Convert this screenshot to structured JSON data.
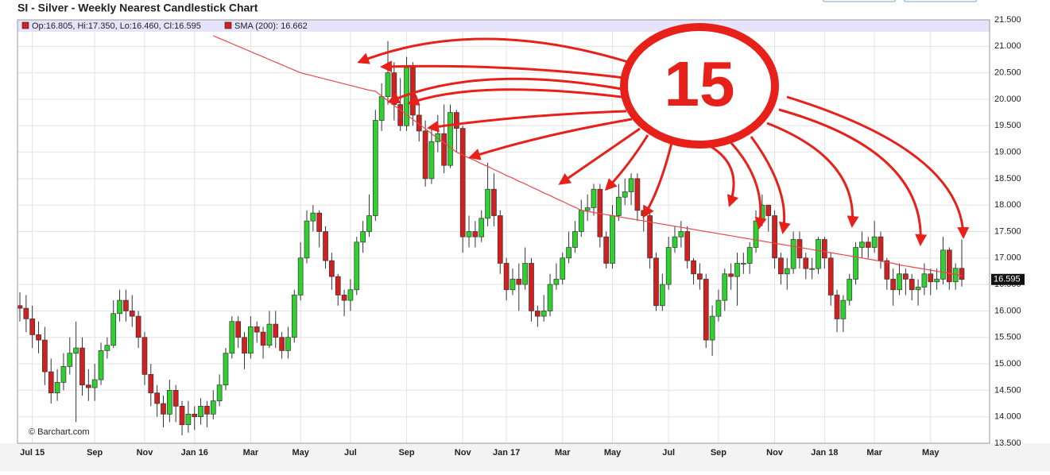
{
  "chart_data": {
    "type": "candlestick",
    "title": "SI - Silver - Weekly Nearest Candlestick Chart",
    "legend": [
      "Op:16.805, Hi:17.350, Lo:16.460, Cl:16.595",
      "SMA (200): 16.662"
    ],
    "watermark": "© Barchart.com",
    "annotation": "15",
    "up_color": "#2fd12f",
    "down_color": "#d0201f",
    "sma_color": "#e8484a",
    "grid": true,
    "categories": [
      null,
      null,
      "Jul 15",
      null,
      null,
      null,
      null,
      null,
      null,
      null,
      null,
      null,
      "Sep",
      null,
      null,
      null,
      null,
      null,
      null,
      null,
      "Nov",
      null,
      null,
      null,
      null,
      null,
      null,
      null,
      "Jan 16",
      null,
      null,
      null,
      null,
      null,
      null,
      null,
      null,
      "Mar",
      null,
      null,
      null,
      null,
      null,
      null,
      null,
      "May",
      null,
      null,
      null,
      null,
      null,
      null,
      null,
      "Jul",
      null,
      null,
      null,
      null,
      null,
      null,
      null,
      null,
      "Sep",
      null,
      null,
      null,
      null,
      null,
      null,
      null,
      null,
      "Nov",
      null,
      null,
      null,
      null,
      null,
      null,
      "Jan 17",
      null,
      null,
      null,
      null,
      null,
      null,
      null,
      null,
      "Mar",
      null,
      null,
      null,
      null,
      null,
      null,
      null,
      "May",
      null,
      null,
      null,
      null,
      null,
      null,
      null,
      null,
      "Jul",
      null,
      null,
      null,
      null,
      null,
      null,
      null,
      "Sep",
      null,
      null,
      null,
      null,
      null,
      null,
      null,
      null,
      "Nov",
      null,
      null,
      null,
      null,
      null,
      null,
      null,
      "Jan 18",
      null,
      null,
      null,
      null,
      null,
      null,
      null,
      "Mar",
      null,
      null,
      null,
      null,
      null,
      null,
      null,
      null,
      "May",
      null,
      null,
      null,
      null,
      null
    ],
    "open": [
      16.1,
      16.05,
      15.85,
      15.55,
      15.45,
      14.85,
      14.45,
      14.65,
      14.95,
      15.2,
      15.3,
      14.6,
      14.55,
      14.7,
      15.25,
      15.35,
      15.95,
      16.2,
      16.0,
      15.9,
      15.5,
      14.8,
      14.45,
      14.25,
      14.05,
      14.5,
      14.2,
      13.85,
      14.05,
      14.0,
      14.2,
      14.05,
      14.3,
      14.6,
      15.2,
      15.8,
      15.5,
      15.2,
      15.7,
      15.6,
      15.35,
      15.75,
      15.5,
      15.25,
      15.5,
      16.3,
      17.0,
      17.7,
      17.85,
      17.5,
      16.95,
      16.65,
      16.3,
      16.2,
      16.4,
      17.3,
      17.5,
      17.8,
      19.6,
      20.05,
      20.5,
      19.9,
      19.5,
      20.6,
      19.7,
      19.4,
      18.5,
      19.2,
      19.35,
      18.75,
      19.75,
      19.45,
      17.4,
      17.5,
      17.4,
      17.75,
      18.3,
      17.8,
      16.9,
      16.4,
      16.6,
      16.5,
      16.9,
      16.0,
      15.9,
      16.0,
      16.5,
      16.6,
      17.0,
      17.2,
      17.5,
      17.9,
      17.95,
      18.3,
      17.4,
      16.9,
      17.8,
      18.15,
      18.25,
      18.5,
      17.9,
      17.8,
      17.0,
      16.1,
      16.5,
      17.2,
      17.4,
      17.5,
      16.95,
      16.7,
      16.6,
      15.45,
      15.9,
      16.2,
      16.7,
      16.65,
      16.9,
      16.9,
      17.2,
      17.7,
      18.0,
      17.8,
      17.0,
      16.7,
      16.8,
      17.35,
      17.0,
      16.8,
      16.8,
      17.35,
      17.0,
      16.3,
      15.85,
      16.2,
      16.6,
      17.2,
      17.3,
      17.2,
      17.4,
      16.95,
      16.6,
      16.4,
      16.7,
      16.6,
      16.4,
      16.45,
      16.7,
      16.55,
      16.6,
      17.15,
      16.55,
      16.805
    ],
    "high": [
      16.35,
      16.3,
      16.1,
      15.8,
      15.7,
      15.1,
      14.9,
      15.2,
      15.5,
      15.8,
      15.5,
      14.9,
      15.0,
      15.4,
      15.5,
      16.2,
      16.4,
      16.4,
      16.3,
      16.0,
      15.6,
      15.0,
      14.6,
      14.4,
      14.7,
      14.6,
      14.3,
      14.3,
      14.2,
      14.35,
      14.3,
      14.5,
      14.8,
      15.3,
      15.9,
      15.9,
      15.6,
      15.9,
      15.8,
      15.7,
      16.0,
      16.0,
      15.6,
      15.7,
      16.4,
      17.3,
      17.9,
      18.0,
      17.9,
      17.6,
      17.1,
      16.7,
      16.4,
      16.6,
      17.4,
      17.7,
      18.2,
      19.8,
      20.3,
      21.1,
      20.7,
      20.4,
      20.8,
      20.7,
      19.9,
      19.6,
      19.5,
      19.7,
      19.9,
      19.9,
      19.8,
      19.5,
      17.8,
      17.7,
      17.9,
      18.8,
      18.6,
      17.9,
      17.0,
      16.8,
      16.9,
      17.2,
      17.0,
      16.1,
      16.3,
      16.7,
      16.9,
      17.1,
      17.5,
      17.7,
      18.1,
      18.2,
      18.4,
      18.4,
      17.5,
      18.0,
      18.4,
      18.5,
      18.6,
      18.6,
      18.0,
      17.9,
      17.1,
      16.7,
      17.4,
      17.6,
      17.7,
      17.6,
      17.0,
      16.9,
      16.7,
      16.1,
      16.4,
      16.8,
      16.9,
      17.1,
      17.1,
      17.3,
      17.9,
      18.2,
      18.0,
      17.9,
      17.1,
      17.0,
      17.5,
      17.5,
      17.1,
      17.0,
      17.4,
      17.4,
      17.1,
      16.4,
      16.3,
      16.7,
      17.3,
      17.5,
      17.4,
      17.7,
      17.5,
      17.0,
      16.8,
      16.9,
      16.8,
      16.7,
      16.6,
      16.9,
      16.8,
      16.8,
      17.4,
      17.2,
      16.9,
      17.35
    ],
    "low": [
      15.8,
      15.6,
      15.3,
      15.2,
      14.6,
      14.25,
      14.3,
      14.5,
      14.8,
      13.9,
      14.4,
      14.3,
      14.3,
      14.6,
      15.1,
      15.3,
      15.8,
      15.8,
      15.7,
      15.3,
      14.6,
      14.2,
      14.0,
      13.8,
      13.9,
      13.9,
      13.65,
      13.7,
      13.75,
      13.85,
      13.8,
      13.95,
      14.2,
      14.5,
      15.1,
      15.3,
      14.9,
      15.1,
      15.4,
      15.1,
      15.3,
      15.3,
      15.1,
      15.1,
      15.4,
      16.2,
      16.9,
      17.5,
      17.2,
      16.8,
      16.4,
      16.1,
      15.9,
      16.0,
      16.3,
      17.1,
      17.4,
      17.7,
      19.4,
      19.9,
      19.6,
      19.4,
      19.4,
      19.5,
      19.2,
      18.35,
      18.4,
      19.0,
      18.6,
      18.7,
      19.0,
      17.1,
      17.2,
      17.2,
      17.3,
      17.6,
      17.6,
      16.7,
      16.2,
      16.3,
      16.0,
      16.4,
      15.8,
      15.7,
      15.8,
      15.9,
      16.4,
      16.5,
      16.9,
      17.1,
      17.4,
      17.7,
      17.8,
      17.2,
      16.8,
      16.8,
      17.7,
      18.0,
      18.0,
      17.7,
      17.5,
      16.8,
      16.0,
      16.0,
      16.4,
      17.1,
      17.2,
      16.8,
      16.5,
      16.4,
      15.3,
      15.15,
      15.8,
      16.0,
      16.4,
      16.1,
      16.7,
      16.7,
      17.1,
      17.6,
      17.5,
      16.8,
      16.5,
      16.4,
      16.7,
      16.8,
      16.6,
      16.6,
      16.7,
      16.8,
      16.1,
      15.6,
      15.6,
      16.1,
      16.5,
      17.0,
      17.0,
      17.1,
      16.8,
      16.4,
      16.1,
      16.3,
      16.3,
      16.2,
      16.1,
      16.3,
      16.3,
      16.4,
      16.5,
      16.4,
      16.4,
      16.46
    ],
    "close": [
      16.05,
      15.85,
      15.55,
      15.45,
      14.85,
      14.45,
      14.65,
      14.95,
      15.2,
      15.3,
      14.6,
      14.55,
      14.7,
      15.25,
      15.35,
      15.95,
      16.2,
      16.0,
      15.9,
      15.5,
      14.8,
      14.45,
      14.25,
      14.05,
      14.5,
      14.2,
      13.85,
      14.05,
      14.0,
      14.2,
      14.05,
      14.3,
      14.6,
      15.2,
      15.8,
      15.5,
      15.2,
      15.7,
      15.6,
      15.35,
      15.75,
      15.5,
      15.25,
      15.5,
      16.3,
      17.0,
      17.7,
      17.85,
      17.5,
      16.95,
      16.65,
      16.3,
      16.2,
      16.4,
      17.3,
      17.5,
      17.8,
      19.6,
      20.05,
      20.5,
      19.9,
      19.5,
      20.6,
      19.7,
      19.4,
      18.5,
      19.2,
      19.35,
      18.75,
      19.75,
      19.45,
      17.4,
      17.5,
      17.4,
      17.75,
      18.3,
      17.8,
      16.9,
      16.4,
      16.6,
      16.5,
      16.9,
      16.0,
      15.9,
      16.0,
      16.5,
      16.6,
      17.0,
      17.2,
      17.5,
      17.9,
      17.95,
      18.3,
      17.4,
      16.9,
      17.8,
      18.15,
      18.25,
      18.5,
      17.9,
      17.8,
      17.0,
      16.1,
      16.5,
      17.2,
      17.4,
      17.5,
      16.95,
      16.7,
      16.6,
      15.45,
      15.9,
      16.2,
      16.7,
      16.65,
      16.9,
      16.9,
      17.2,
      17.7,
      18.0,
      17.8,
      17.0,
      16.7,
      16.8,
      17.35,
      17.0,
      16.8,
      16.8,
      17.35,
      17.0,
      16.3,
      15.85,
      16.2,
      16.6,
      17.2,
      17.3,
      17.2,
      17.4,
      16.95,
      16.6,
      16.4,
      16.7,
      16.6,
      16.4,
      16.45,
      16.7,
      16.55,
      16.6,
      17.15,
      16.55,
      16.805,
      16.595
    ],
    "sma": [
      null,
      null,
      null,
      null,
      null,
      null,
      null,
      null,
      null,
      null,
      null,
      null,
      null,
      null,
      null,
      null,
      null,
      null,
      null,
      null,
      null,
      null,
      null,
      null,
      null,
      null,
      null,
      null,
      null,
      null,
      null,
      21.2,
      21.15,
      21.1,
      21.05,
      21.0,
      20.95,
      20.9,
      20.85,
      20.8,
      20.75,
      20.7,
      20.65,
      20.6,
      20.55,
      20.5,
      20.47,
      20.44,
      20.41,
      20.38,
      20.35,
      20.32,
      20.29,
      20.26,
      20.23,
      20.2,
      20.17,
      20.15,
      20.06,
      19.97,
      19.88,
      19.8,
      19.71,
      19.62,
      19.53,
      19.44,
      19.35,
      19.26,
      19.18,
      19.09,
      19.0,
      18.95,
      18.89,
      18.84,
      18.78,
      18.73,
      18.67,
      18.62,
      18.56,
      18.51,
      18.45,
      18.4,
      18.34,
      18.29,
      18.23,
      18.18,
      18.12,
      18.07,
      18.01,
      17.96,
      17.9,
      17.88,
      17.86,
      17.84,
      17.82,
      17.8,
      17.78,
      17.76,
      17.74,
      17.72,
      17.7,
      17.68,
      17.66,
      17.64,
      17.62,
      17.6,
      17.58,
      17.56,
      17.54,
      17.52,
      17.5,
      17.48,
      17.46,
      17.44,
      17.42,
      17.4,
      17.38,
      17.36,
      17.34,
      17.32,
      17.3,
      17.28,
      17.26,
      17.24,
      17.22,
      17.2,
      17.18,
      17.16,
      17.14,
      17.12,
      17.1,
      17.08,
      17.06,
      17.04,
      17.02,
      17.0,
      16.98,
      16.96,
      16.94,
      16.92,
      16.9,
      16.87,
      16.85,
      16.83,
      16.81,
      16.79,
      16.77,
      16.75,
      16.73,
      16.71,
      16.69,
      16.662
    ],
    "ylim": [
      13.5,
      21.5
    ],
    "yticks": [
      {
        "value": 13.5,
        "label": "13.500"
      },
      {
        "value": 14,
        "label": "14.000"
      },
      {
        "value": 14.5,
        "label": "14.500"
      },
      {
        "value": 15,
        "label": "15.000"
      },
      {
        "value": 15.5,
        "label": "15.500"
      },
      {
        "value": 16,
        "label": "16.000"
      },
      {
        "value": 16.5,
        "label": "16.500"
      },
      {
        "value": 17,
        "label": "17.000"
      },
      {
        "value": 17.5,
        "label": "17.500"
      },
      {
        "value": 18,
        "label": "18.000"
      },
      {
        "value": 18.5,
        "label": "18.500"
      },
      {
        "value": 19,
        "label": "19.000"
      },
      {
        "value": 19.5,
        "label": "19.500"
      },
      {
        "value": 20,
        "label": "20.000"
      },
      {
        "value": 20.5,
        "label": "20.500"
      },
      {
        "value": 21,
        "label": "21.000"
      },
      {
        "value": 21.5,
        "label": "21.500"
      }
    ]
  }
}
